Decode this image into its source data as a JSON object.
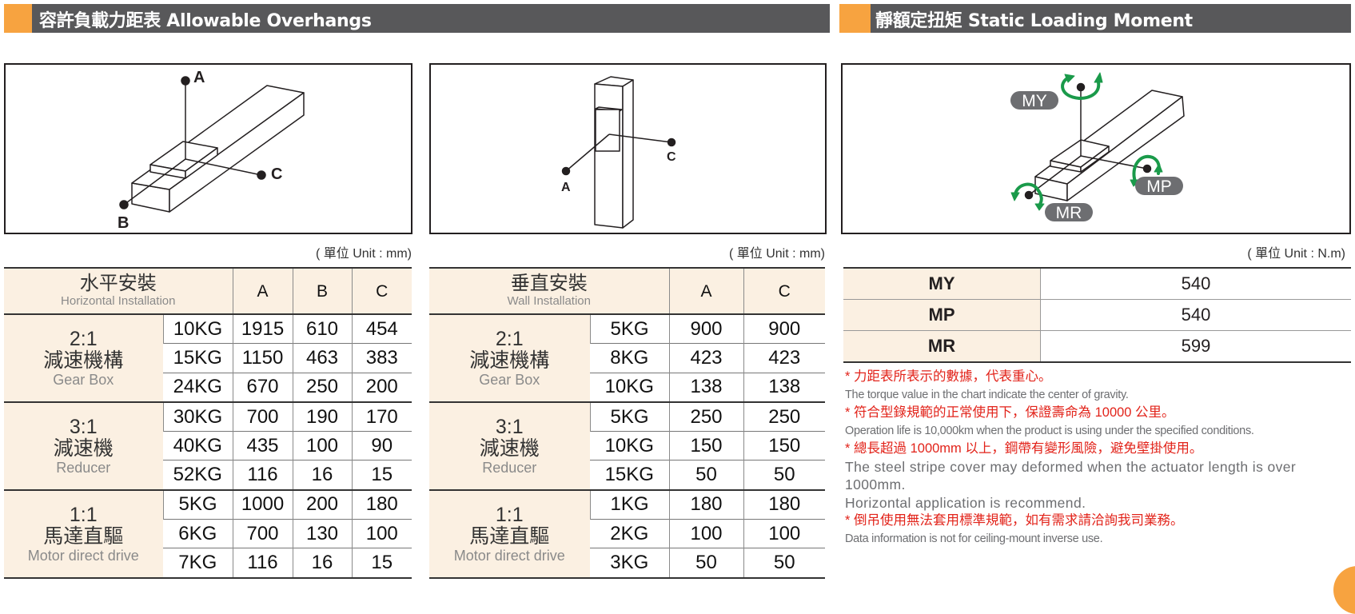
{
  "section_overhangs": {
    "title": "容許負載力距表 Allowable Overhangs"
  },
  "section_moment": {
    "title": "靜額定扭矩 Static Loading Moment"
  },
  "diagram_horizontal": {
    "labels": {
      "a": "A",
      "b": "B",
      "c": "C"
    }
  },
  "diagram_wall": {
    "labels": {
      "a": "A",
      "c": "C"
    }
  },
  "diagram_moment": {
    "labels": {
      "my": "MY",
      "mp": "MP",
      "mr": "MR"
    },
    "arrow_color": "#1a9a4a"
  },
  "horizontal_table": {
    "unit": "( 單位 Unit : mm)",
    "header_zh": "水平安裝",
    "header_en": "Horizontal Installation",
    "columns": [
      "A",
      "B",
      "C"
    ],
    "groups": [
      {
        "ratio": "2:1",
        "name_zh": "減速機構",
        "name_en": "Gear Box",
        "rows": [
          {
            "load": "10KG",
            "values": [
              "1915",
              "610",
              "454"
            ]
          },
          {
            "load": "15KG",
            "values": [
              "1150",
              "463",
              "383"
            ]
          },
          {
            "load": "24KG",
            "values": [
              "670",
              "250",
              "200"
            ]
          }
        ]
      },
      {
        "ratio": "3:1",
        "name_zh": "減速機",
        "name_en": "Reducer",
        "rows": [
          {
            "load": "30KG",
            "values": [
              "700",
              "190",
              "170"
            ]
          },
          {
            "load": "40KG",
            "values": [
              "435",
              "100",
              "90"
            ]
          },
          {
            "load": "52KG",
            "values": [
              "116",
              "16",
              "15"
            ]
          }
        ]
      },
      {
        "ratio": "1:1",
        "name_zh": "馬達直驅",
        "name_en": "Motor direct  drive",
        "rows": [
          {
            "load": "5KG",
            "values": [
              "1000",
              "200",
              "180"
            ]
          },
          {
            "load": "6KG",
            "values": [
              "700",
              "130",
              "100"
            ]
          },
          {
            "load": "7KG",
            "values": [
              "116",
              "16",
              "15"
            ]
          }
        ]
      }
    ]
  },
  "wall_table": {
    "unit": "( 單位 Unit : mm)",
    "header_zh": "垂直安裝",
    "header_en": "Wall Installation",
    "columns": [
      "A",
      "C"
    ],
    "groups": [
      {
        "ratio": "2:1",
        "name_zh": "減速機構",
        "name_en": "Gear Box",
        "rows": [
          {
            "load": "5KG",
            "values": [
              "900",
              "900"
            ]
          },
          {
            "load": "8KG",
            "values": [
              "423",
              "423"
            ]
          },
          {
            "load": "10KG",
            "values": [
              "138",
              "138"
            ]
          }
        ]
      },
      {
        "ratio": "3:1",
        "name_zh": "減速機",
        "name_en": "Reducer",
        "rows": [
          {
            "load": "5KG",
            "values": [
              "250",
              "250"
            ]
          },
          {
            "load": "10KG",
            "values": [
              "150",
              "150"
            ]
          },
          {
            "load": "15KG",
            "values": [
              "50",
              "50"
            ]
          }
        ]
      },
      {
        "ratio": "1:1",
        "name_zh": "馬達直驅",
        "name_en": "Motor direct drive",
        "rows": [
          {
            "load": "1KG",
            "values": [
              "180",
              "180"
            ]
          },
          {
            "load": "2KG",
            "values": [
              "100",
              "100"
            ]
          },
          {
            "load": "3KG",
            "values": [
              "50",
              "50"
            ]
          }
        ]
      }
    ]
  },
  "moment_table": {
    "unit": "( 單位 Unit : N.m)",
    "rows": [
      {
        "key": "MY",
        "value": "540"
      },
      {
        "key": "MP",
        "value": "540"
      },
      {
        "key": "MR",
        "value": "599"
      }
    ]
  },
  "notes": [
    {
      "style": "red",
      "text": "* 力距表所表示的數據，代表重心。"
    },
    {
      "style": "gray",
      "text": "The torque value in the chart indicate the center of gravity."
    },
    {
      "style": "red",
      "text": "* 符合型錄規範的正常使用下，保證壽命為 10000 公里。"
    },
    {
      "style": "gray",
      "text": "Operation life is 10,000km when the product is using under the specified conditions."
    },
    {
      "style": "red",
      "text": "* 總長超過 1000mm 以上，鋼帶有變形風險，避免壁掛使用。"
    },
    {
      "style": "big",
      "text": "The steel stripe cover may deformed when the actuator length is over"
    },
    {
      "style": "big",
      "text": "1000mm."
    },
    {
      "style": "big",
      "text": "Horizontal application is recommend."
    },
    {
      "style": "red",
      "text": "* 倒吊使用無法套用標準規範，如有需求請洽詢我司業務。"
    },
    {
      "style": "gray",
      "text": "Data information is not for ceiling-mount inverse use."
    }
  ],
  "colors": {
    "header_bg": "#58585a",
    "accent": "#f7a340",
    "table_label_bg": "#fbf0e2",
    "note_red": "#e2231a"
  }
}
